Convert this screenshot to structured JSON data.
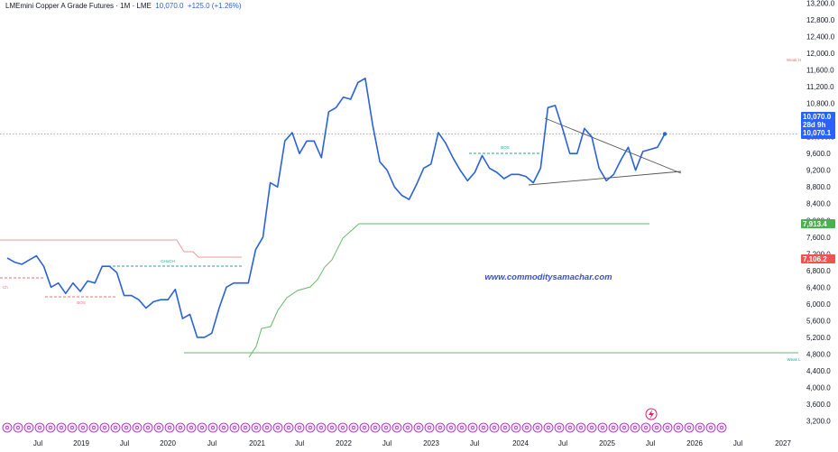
{
  "header": {
    "symbol": "LMEmini Copper A Grade Futures · 1M · LME",
    "price": "10,070.0",
    "change": "+125.0 (+1.26%)"
  },
  "watermark": "www.commoditysamachar.com",
  "price_tags": {
    "last": "10,070.0",
    "countdown": "28d 9h",
    "last_line": "10,070.1",
    "green": "7,913.4",
    "red": "7,106.2"
  },
  "annotations": {
    "bos_left": "BOS",
    "choch": "CHoCH",
    "bos_right": "BOS",
    "weak_h": "Weak H",
    "weak_l": "Weak L",
    "left_mark": "Ch"
  },
  "colors": {
    "price_line": "#2a62d8",
    "last_tag": "#2962ff",
    "green_tag": "#4caf50",
    "red_tag": "#ef5350",
    "green_line": "#66bb6a",
    "red_line": "#ef9a9a",
    "watermark": "#3b4fd0",
    "teal": "#26a69a"
  },
  "chart_data": {
    "type": "line",
    "title": "LMEmini Copper A Grade Futures · 1M · LME",
    "xlabel": "",
    "ylabel": "",
    "ylim": [
      2900,
      13400
    ],
    "y_ticks": [
      "13,200.0",
      "12,800.0",
      "12,400.0",
      "12,000.0",
      "11,600.0",
      "11,200.0",
      "10,800.0",
      "10,400.0",
      "10,000.0",
      "9,600.0",
      "9,200.0",
      "8,800.0",
      "8,400.0",
      "8,000.0",
      "7,600.0",
      "7,200.0",
      "6,800.0",
      "6,400.0",
      "6,000.0",
      "5,600.0",
      "5,200.0",
      "4,800.0",
      "4,400.0",
      "4,000.0",
      "3,600.0",
      "3,200.0"
    ],
    "x_ticks": [
      "Jul",
      "2019",
      "Jul",
      "2020",
      "Jul",
      "2021",
      "Jul",
      "2022",
      "Jul",
      "2023",
      "Jul",
      "2024",
      "Jul",
      "2025",
      "Jul",
      "2026",
      "Jul",
      "2027"
    ],
    "series": [
      {
        "x": [
          "2018-01",
          "2018-02",
          "2018-03",
          "2018-04",
          "2018-05",
          "2018-06",
          "2018-07",
          "2018-08",
          "2018-09",
          "2018-10",
          "2018-11",
          "2018-12",
          "2019-01",
          "2019-02",
          "2019-03",
          "2019-04",
          "2019-05",
          "2019-06",
          "2019-07",
          "2019-08",
          "2019-09",
          "2019-10",
          "2019-11",
          "2019-12",
          "2020-01",
          "2020-02",
          "2020-03",
          "2020-04",
          "2020-05",
          "2020-06",
          "2020-07",
          "2020-08",
          "2020-09",
          "2020-10",
          "2020-11",
          "2020-12",
          "2021-01",
          "2021-02",
          "2021-03",
          "2021-04",
          "2021-05",
          "2021-06",
          "2021-07",
          "2021-08",
          "2021-09",
          "2021-10",
          "2021-11",
          "2021-12",
          "2022-01",
          "2022-02",
          "2022-03",
          "2022-04",
          "2022-05",
          "2022-06",
          "2022-07",
          "2022-08",
          "2022-09",
          "2022-10",
          "2022-11",
          "2022-12",
          "2023-01",
          "2023-02",
          "2023-03",
          "2023-04",
          "2023-05",
          "2023-06",
          "2023-07",
          "2023-08",
          "2023-09",
          "2023-10",
          "2023-11",
          "2023-12",
          "2024-01",
          "2024-02",
          "2024-03",
          "2024-04",
          "2024-05",
          "2024-06",
          "2024-07",
          "2024-08",
          "2024-09",
          "2024-10",
          "2024-11",
          "2024-12",
          "2025-01",
          "2025-02",
          "2025-03",
          "2025-04",
          "2025-05",
          "2025-06",
          "2025-07"
        ],
        "values": [
          7100,
          7000,
          6950,
          7050,
          7150,
          6900,
          6400,
          6500,
          6250,
          6500,
          6300,
          6550,
          6500,
          6900,
          6900,
          6750,
          6200,
          6200,
          6100,
          5900,
          6050,
          6100,
          6100,
          6350,
          5650,
          5750,
          5200,
          5200,
          5300,
          5900,
          6400,
          6500,
          6500,
          6500,
          7300,
          7600,
          8900,
          8800,
          9900,
          10100,
          9600,
          9900,
          9900,
          9500,
          10600,
          10700,
          10950,
          10900,
          11300,
          11400,
          10300,
          9400,
          9200,
          8800,
          8600,
          8500,
          8850,
          9250,
          9350,
          10100,
          9850,
          9500,
          9200,
          8950,
          9150,
          9550,
          9250,
          9150,
          9000,
          9100,
          9100,
          9050,
          8900,
          9250,
          10700,
          10750,
          10200,
          9600,
          9600,
          10200,
          10000,
          9250,
          8950,
          9100,
          9450,
          9750,
          9200,
          9650,
          9700,
          9750,
          10070
        ]
      }
    ]
  }
}
